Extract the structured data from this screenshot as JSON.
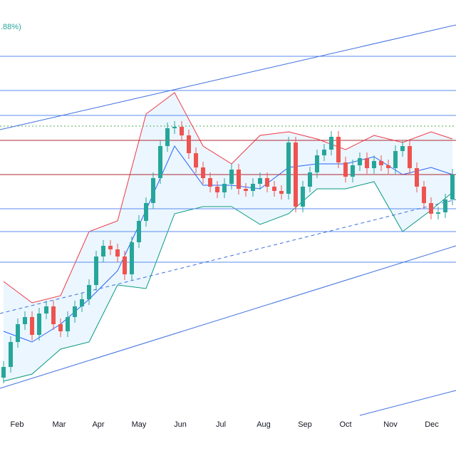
{
  "chart_data": {
    "type": "candlestick",
    "annotations": [
      ".88%)"
    ],
    "annotation_color": "#26a69a",
    "xlim": [
      -0.5,
      63.5
    ],
    "ylim": [
      0,
      600
    ],
    "xticks": [
      {
        "value": 1.9,
        "label": "Feb"
      },
      {
        "value": 7.8,
        "label": "Mar"
      },
      {
        "value": 13.3,
        "label": "Apr"
      },
      {
        "value": 19,
        "label": "May"
      },
      {
        "value": 24.8,
        "label": "Jun"
      },
      {
        "value": 30.5,
        "label": "Jul"
      },
      {
        "value": 36.5,
        "label": "Aug"
      },
      {
        "value": 42.3,
        "label": "Sep"
      },
      {
        "value": 48,
        "label": "Oct"
      },
      {
        "value": 54.3,
        "label": "Nov"
      },
      {
        "value": 60.1,
        "label": "Dec"
      }
    ],
    "up_color": "#26a69a",
    "down_color": "#ef5350",
    "open": [
      70,
      85,
      120,
      145,
      155,
      130,
      160,
      170,
      145,
      135,
      155,
      170,
      180,
      200,
      240,
      255,
      250,
      240,
      215,
      260,
      290,
      315,
      350,
      395,
      420,
      422,
      410,
      385,
      365,
      350,
      338,
      330,
      342,
      362,
      335,
      332,
      342,
      350,
      338,
      332,
      328,
      400,
      310,
      338,
      358,
      382,
      390,
      408,
      372,
      352,
      368,
      378,
      364,
      374,
      368,
      364,
      388,
      395,
      364,
      338,
      315,
      300,
      302,
      320
    ],
    "high": [
      93,
      128,
      153,
      163,
      163,
      168,
      178,
      178,
      153,
      163,
      178,
      188,
      208,
      248,
      263,
      263,
      258,
      248,
      268,
      298,
      323,
      358,
      403,
      428,
      430,
      430,
      418,
      393,
      373,
      358,
      346,
      350,
      370,
      370,
      343,
      350,
      358,
      358,
      346,
      340,
      408,
      408,
      346,
      366,
      390,
      398,
      416,
      416,
      380,
      376,
      386,
      386,
      382,
      382,
      376,
      396,
      403,
      403,
      372,
      346,
      323,
      310,
      328,
      363
    ],
    "low": [
      62,
      77,
      112,
      137,
      122,
      122,
      152,
      137,
      127,
      127,
      147,
      162,
      172,
      192,
      232,
      242,
      232,
      207,
      207,
      252,
      282,
      307,
      342,
      387,
      412,
      402,
      377,
      357,
      342,
      330,
      322,
      322,
      334,
      327,
      324,
      324,
      334,
      330,
      324,
      320,
      320,
      302,
      302,
      330,
      350,
      374,
      382,
      364,
      344,
      344,
      360,
      356,
      356,
      360,
      356,
      356,
      380,
      356,
      330,
      307,
      292,
      292,
      294,
      312
    ],
    "close": [
      85,
      120,
      145,
      155,
      130,
      160,
      170,
      145,
      135,
      155,
      170,
      180,
      200,
      240,
      255,
      250,
      240,
      215,
      260,
      290,
      315,
      350,
      395,
      420,
      422,
      410,
      385,
      365,
      350,
      338,
      330,
      342,
      362,
      335,
      332,
      342,
      350,
      338,
      332,
      328,
      400,
      310,
      338,
      358,
      382,
      390,
      408,
      372,
      352,
      368,
      378,
      364,
      374,
      368,
      364,
      388,
      395,
      364,
      338,
      315,
      300,
      302,
      320,
      355
    ],
    "bands": {
      "x": [
        0,
        4,
        8,
        12,
        16,
        20,
        24,
        28,
        32,
        36,
        40,
        44,
        48,
        52,
        56,
        60,
        63
      ],
      "upper": [
        205,
        175,
        185,
        275,
        290,
        440,
        470,
        395,
        370,
        410,
        415,
        405,
        390,
        410,
        400,
        415,
        405
      ],
      "middle": [
        135,
        120,
        145,
        180,
        220,
        305,
        395,
        340,
        340,
        335,
        365,
        370,
        370,
        380,
        355,
        365,
        355
      ],
      "lower": [
        65,
        75,
        110,
        120,
        200,
        195,
        300,
        310,
        310,
        285,
        300,
        335,
        335,
        345,
        275,
        305,
        330
      ],
      "upper_color": "#f23645",
      "middle_color": "#2962ff",
      "lower_color": "#089981",
      "fill": "#e3f2fd"
    },
    "levels": [
      {
        "value": 521,
        "color": "#5b8cf0"
      },
      {
        "value": 473,
        "color": "#5b8cf0"
      },
      {
        "value": 438,
        "color": "#5b8cf0"
      },
      {
        "value": 423,
        "color": "#4caf50",
        "dashed": true
      },
      {
        "value": 403,
        "color": "#b22833"
      },
      {
        "value": 355,
        "color": "#b22833"
      },
      {
        "value": 307,
        "color": "#5b8cf0"
      },
      {
        "value": 275,
        "color": "#5b8cf0"
      },
      {
        "value": 232,
        "color": "#5b8cf0"
      }
    ],
    "trendlines": [
      {
        "x": [
          -0.5,
          63.5
        ],
        "y": [
          418,
          565
        ],
        "color": "#3d6fe0"
      },
      {
        "x": [
          -0.5,
          63.5
        ],
        "y": [
          55,
          255
        ],
        "color": "#3d6fe0"
      },
      {
        "x": [
          -0.5,
          63.5
        ],
        "y": [
          160,
          320
        ],
        "color": "#3d6fe0",
        "dashed": true
      },
      {
        "x": [
          50,
          63.5
        ],
        "y": [
          17,
          52
        ],
        "color": "#3d6fe0"
      }
    ]
  }
}
